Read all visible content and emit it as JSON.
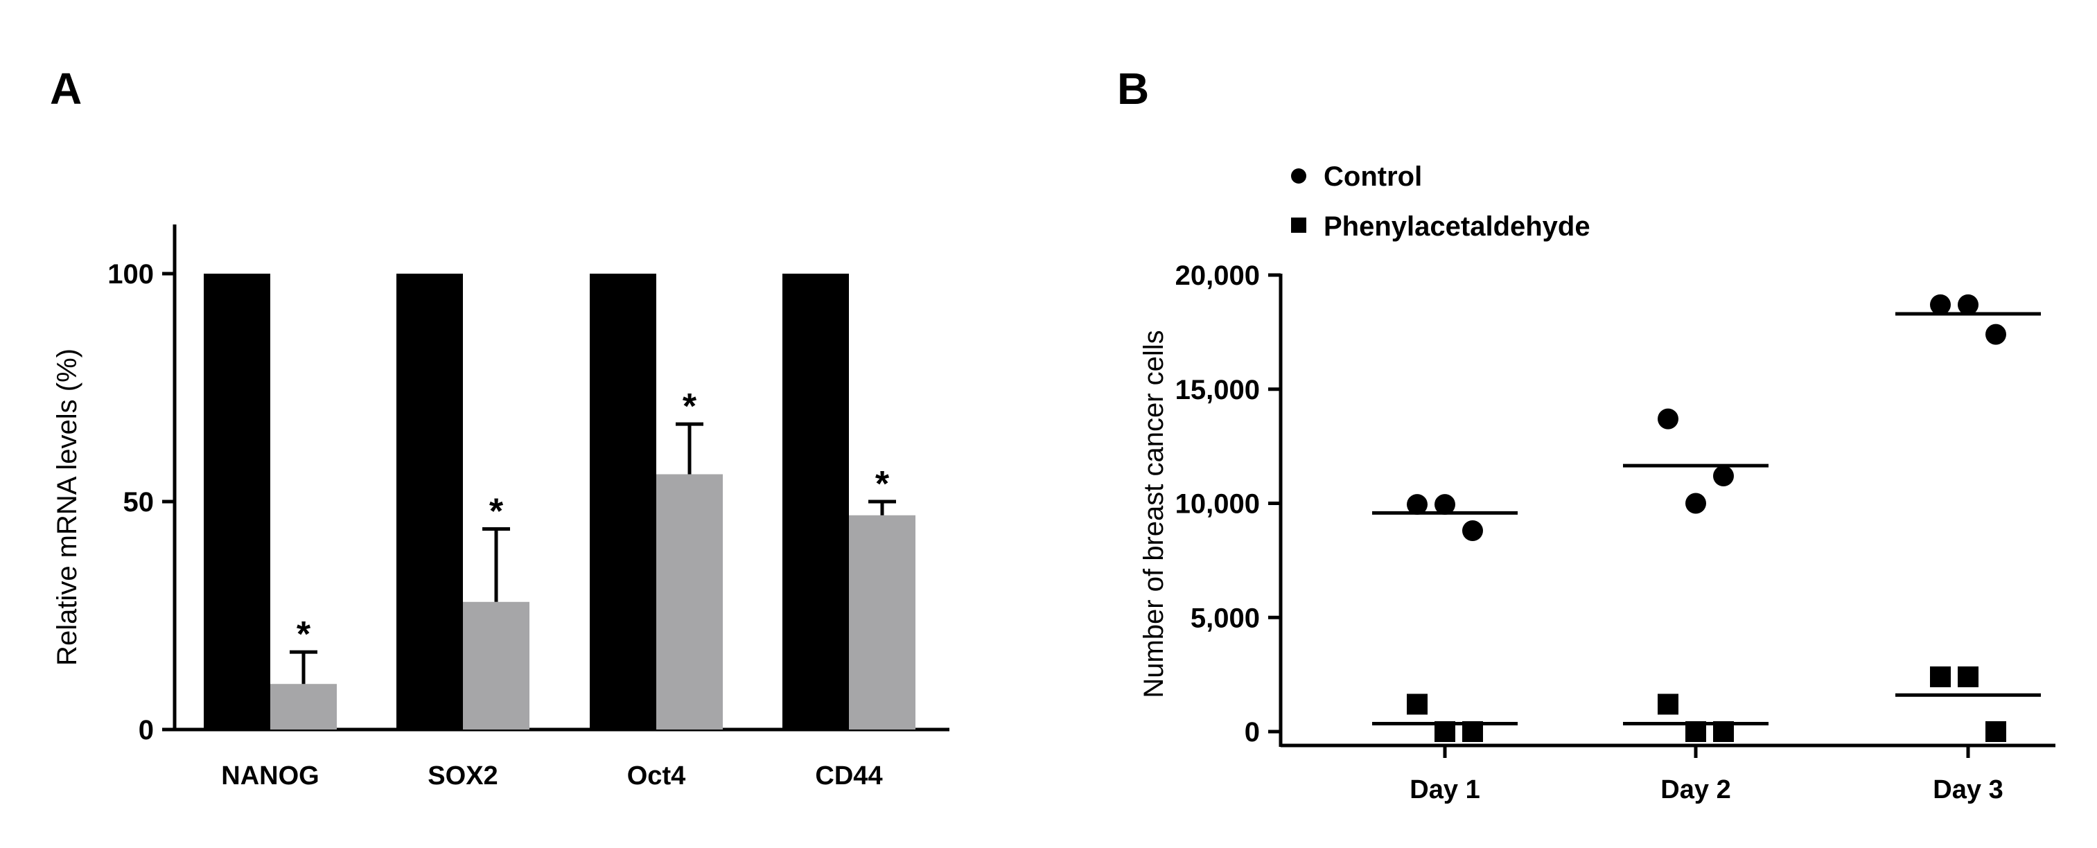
{
  "chart_data": [
    {
      "panel_label": "A",
      "type": "bar",
      "title": "",
      "xlabel": "",
      "ylabel": "Relative mRNA levels (%)",
      "ylim": [
        0,
        110
      ],
      "yticks": [
        0,
        50,
        100
      ],
      "categories": [
        "NANOG",
        "SOX2",
        "Oct4",
        "CD44"
      ],
      "series": [
        {
          "name": "Control",
          "color": "#000000",
          "values": [
            100,
            100,
            100,
            100
          ],
          "errors": [
            0,
            0,
            0,
            0
          ]
        },
        {
          "name": "Phenylacetaldehyde",
          "color": "#a6a6a8",
          "values": [
            10,
            28,
            56,
            47
          ],
          "errors": [
            7,
            16,
            11,
            3
          ]
        }
      ],
      "significance": [
        "*",
        "*",
        "*",
        "*"
      ]
    },
    {
      "panel_label": "B",
      "type": "scatter",
      "title": "",
      "xlabel": "",
      "ylabel": "Number of breast cancer cells",
      "ylim": [
        0,
        20000
      ],
      "yticks": [
        0,
        5000,
        10000,
        15000,
        20000
      ],
      "ytick_labels": [
        "0",
        "5,000",
        "10,000",
        "15,000",
        "20,000"
      ],
      "categories": [
        "Day 1",
        "Day 2",
        "Day 3"
      ],
      "legend": [
        {
          "name": "Control",
          "marker": "circle"
        },
        {
          "name": "Phenylacetaldehyde",
          "marker": "square"
        }
      ],
      "series": [
        {
          "name": "Control",
          "marker": "circle",
          "color": "#000000",
          "points": [
            [
              9950,
              9950,
              8800
            ],
            [
              13700,
              10000,
              11200
            ],
            [
              18700,
              18700,
              17400
            ]
          ],
          "means": [
            9580,
            11650,
            18300
          ]
        },
        {
          "name": "Phenylacetaldehyde",
          "marker": "square",
          "color": "#000000",
          "points": [
            [
              1200,
              0,
              0
            ],
            [
              1200,
              0,
              0
            ],
            [
              2400,
              2400,
              0
            ]
          ],
          "means": [
            350,
            350,
            1600
          ]
        }
      ]
    }
  ]
}
